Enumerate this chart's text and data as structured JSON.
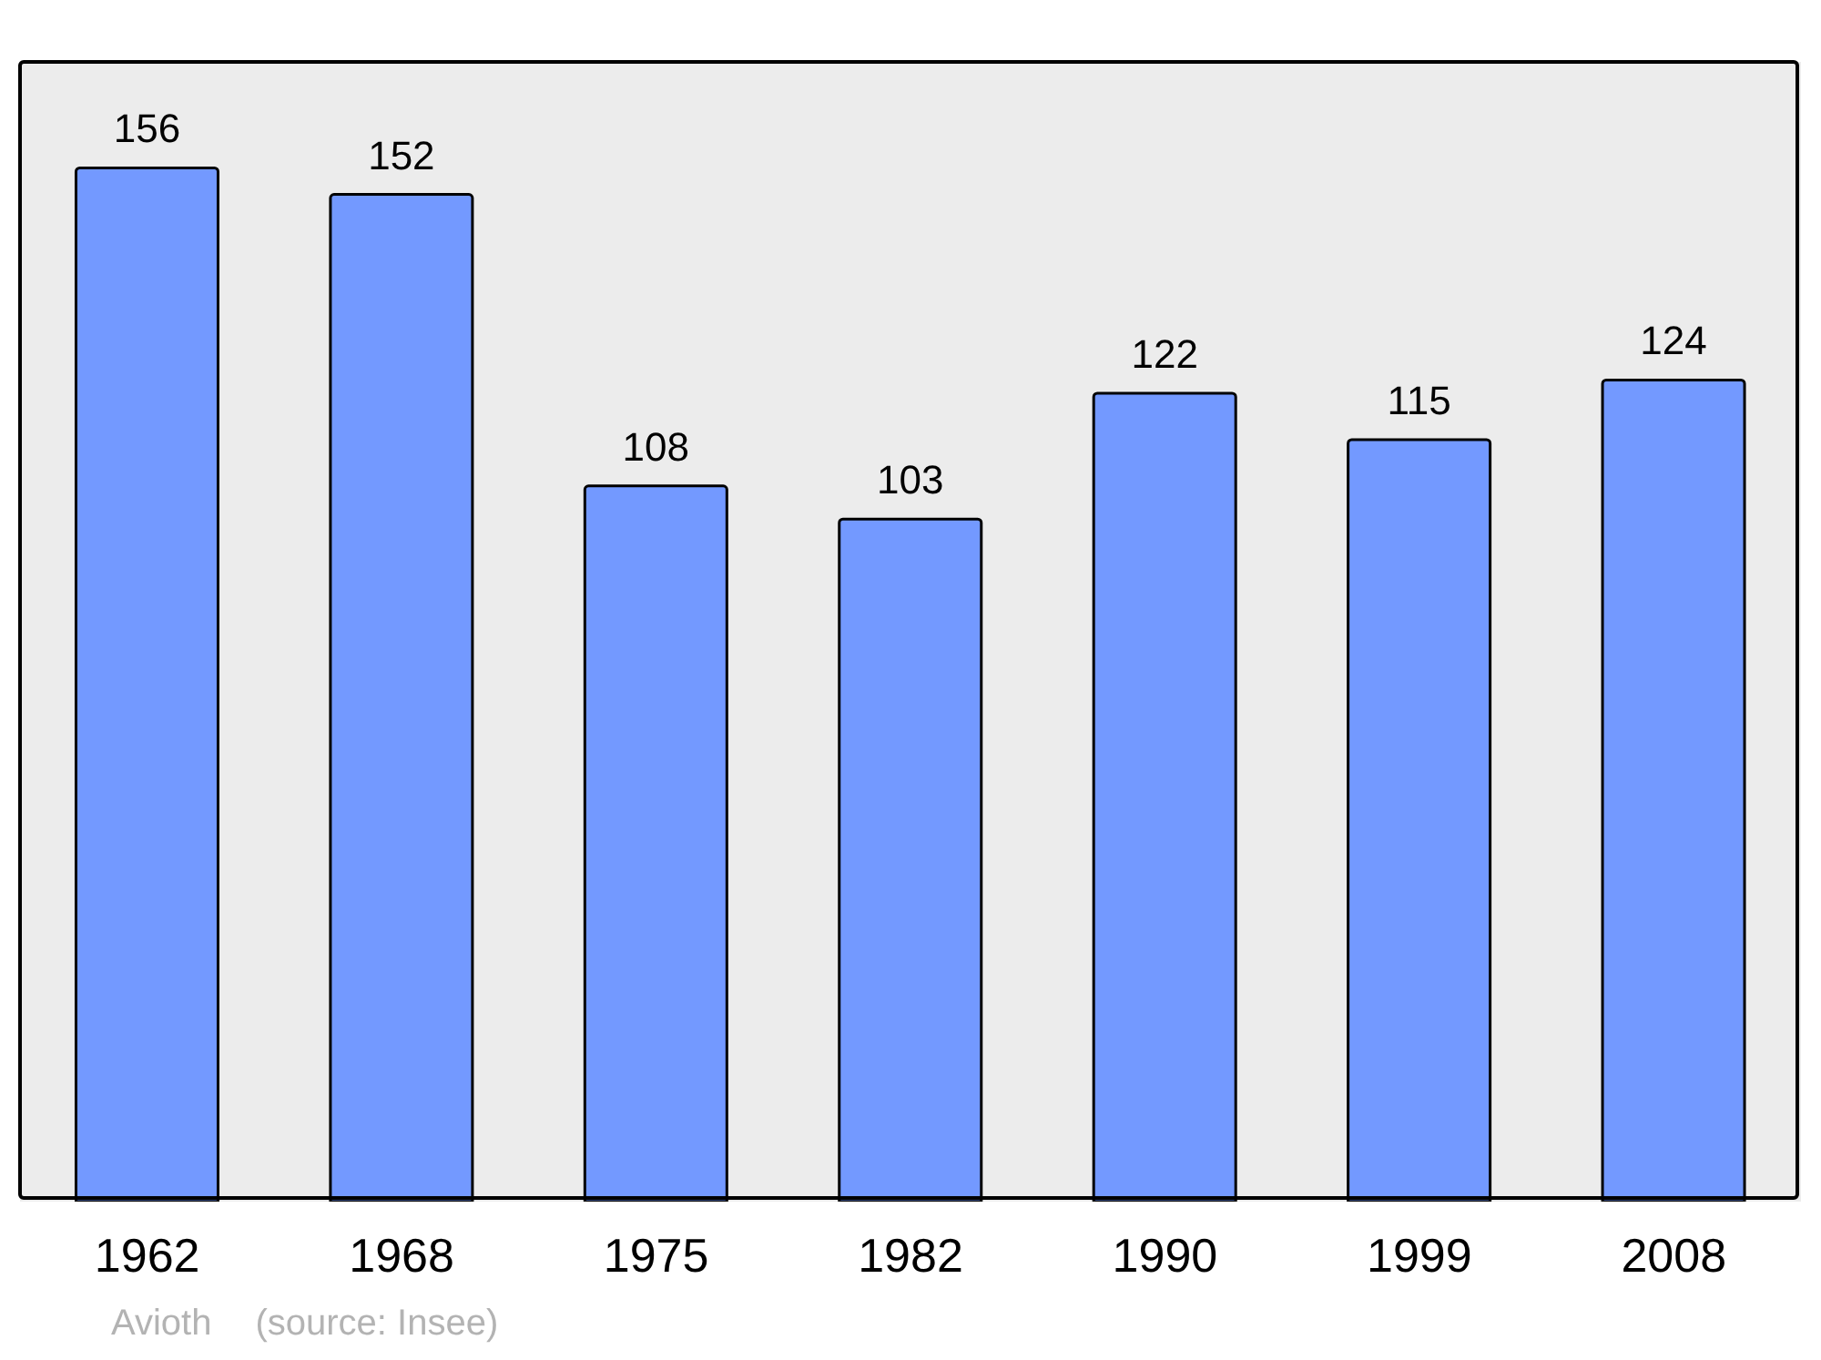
{
  "chart_data": {
    "type": "bar",
    "categories": [
      "1962",
      "1968",
      "1975",
      "1982",
      "1990",
      "1999",
      "2008"
    ],
    "values": [
      156,
      152,
      108,
      103,
      122,
      115,
      124
    ],
    "color": "#7399ff",
    "ylim": [
      0,
      172
    ],
    "data_labels": true,
    "annotations": [
      "Avioth",
      "(source: Insee)"
    ]
  }
}
